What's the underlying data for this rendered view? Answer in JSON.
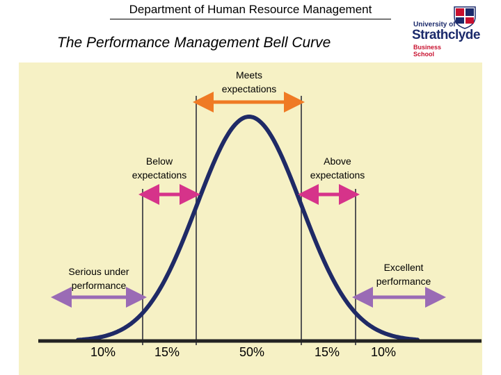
{
  "header": {
    "department": "Department of Human Resource Management",
    "title": "The Performance Management Bell Curve"
  },
  "logo": {
    "line1": "University of",
    "line2": "Strathclyde",
    "line3": "Business",
    "line4": "School"
  },
  "colors": {
    "background_panel": "#f6f1c5",
    "curve": "#1f2a66",
    "meets_arrow": "#ef7a24",
    "middle_arrow": "#d6338a",
    "outer_arrow": "#9a6bb5"
  },
  "bands": [
    {
      "label_line1": "Serious under",
      "label_line2": "performance",
      "percent": "10%"
    },
    {
      "label_line1": "Below",
      "label_line2": "expectations",
      "percent": "15%"
    },
    {
      "label_line1": "Meets",
      "label_line2": "expectations",
      "percent": "50%"
    },
    {
      "label_line1": "Above",
      "label_line2": "expectations",
      "percent": "15%"
    },
    {
      "label_line1": "Excellent",
      "label_line2": "performance",
      "percent": "10%"
    }
  ]
}
